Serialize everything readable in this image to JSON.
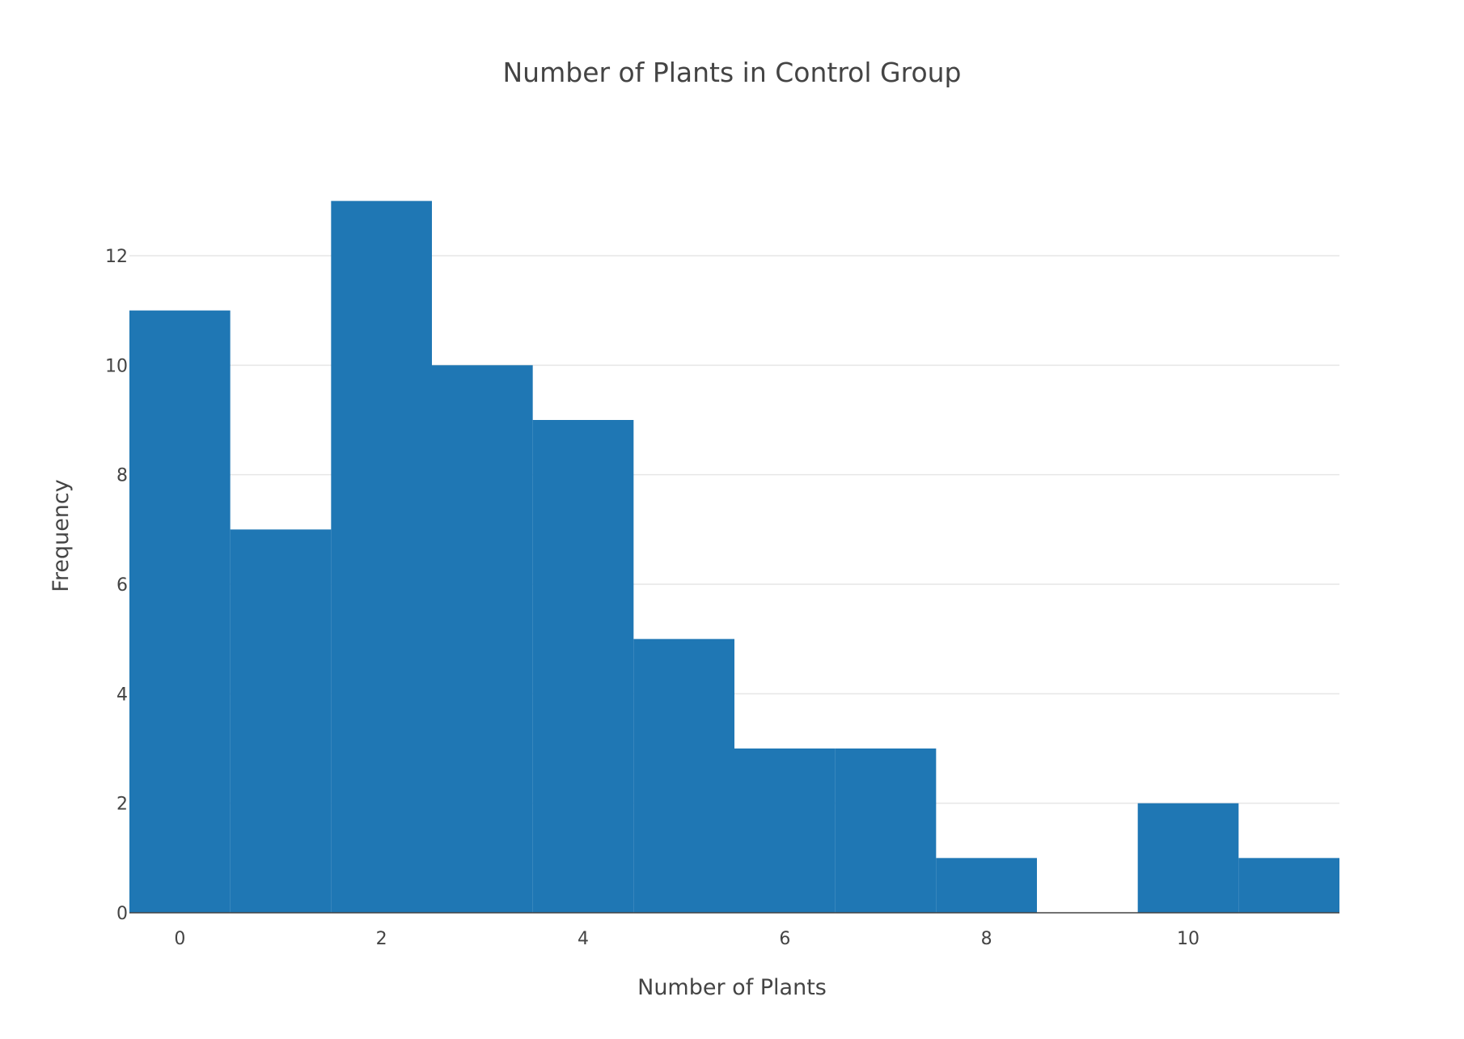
{
  "chart_data": {
    "type": "bar",
    "title": "Number of Plants in Control Group",
    "xlabel": "Number of Plants",
    "ylabel": "Frequency",
    "x": [
      0,
      1,
      2,
      3,
      4,
      5,
      6,
      7,
      8,
      9,
      10,
      11
    ],
    "values": [
      11,
      7,
      13,
      10,
      9,
      5,
      3,
      3,
      1,
      0,
      2,
      1
    ],
    "bin_width": 1,
    "xlim": [
      -0.5,
      11.5
    ],
    "ylim": [
      0,
      13.5
    ],
    "x_ticks": [
      0,
      2,
      4,
      6,
      8,
      10
    ],
    "y_ticks": [
      0,
      2,
      4,
      6,
      8,
      10,
      12
    ],
    "grid": true,
    "bar_color": "#1f77b4",
    "grid_color": "#e6e6e6",
    "text_color": "#444444"
  }
}
